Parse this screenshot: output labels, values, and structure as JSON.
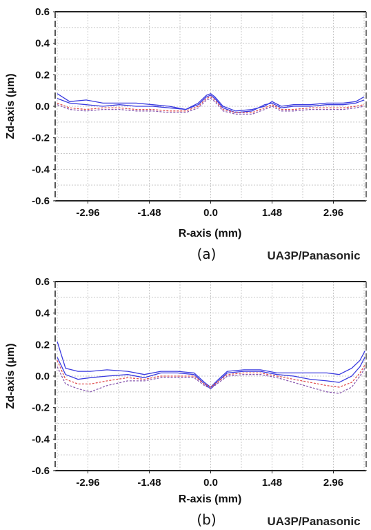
{
  "chart_data": [
    {
      "type": "line",
      "panel_label": "(a)",
      "source_label": "UA3P/Panasonic",
      "xlabel": "R-axis (mm)",
      "ylabel": "Zd-axis (μm)",
      "xlim": [
        -3.75,
        3.75
      ],
      "ylim": [
        -0.6,
        0.6
      ],
      "x_ticks": [
        "-2.96",
        "-1.48",
        "0.0",
        "1.48",
        "2.96"
      ],
      "y_ticks": [
        "0.6",
        "0.4",
        "0.2",
        "0.0",
        "-0.2",
        "-0.4",
        "-0.6"
      ],
      "grid": true,
      "colors": {
        "blue": "#3a3adf",
        "red": "#e05050",
        "purple": "#8a5ab0"
      },
      "series": [
        {
          "color": "blue",
          "style": "solid",
          "x": [
            -3.7,
            -3.4,
            -3.0,
            -2.6,
            -2.2,
            -1.8,
            -1.4,
            -1.0,
            -0.6,
            -0.3,
            -0.1,
            0.0,
            0.1,
            0.3,
            0.6,
            1.0,
            1.3,
            1.48,
            1.7,
            2.0,
            2.4,
            2.8,
            3.2,
            3.5,
            3.7
          ],
          "y": [
            0.08,
            0.03,
            0.04,
            0.02,
            0.02,
            0.02,
            0.01,
            0.0,
            -0.02,
            0.02,
            0.07,
            0.08,
            0.06,
            0.0,
            -0.03,
            -0.02,
            0.0,
            0.03,
            0.0,
            0.01,
            0.01,
            0.02,
            0.02,
            0.03,
            0.06
          ]
        },
        {
          "color": "blue",
          "style": "solid",
          "x": [
            -3.7,
            -3.4,
            -3.0,
            -2.6,
            -2.2,
            -1.8,
            -1.4,
            -1.0,
            -0.6,
            -0.3,
            -0.1,
            0.0,
            0.1,
            0.3,
            0.6,
            1.0,
            1.3,
            1.48,
            1.7,
            2.0,
            2.4,
            2.8,
            3.2,
            3.5,
            3.7
          ],
          "y": [
            0.05,
            0.02,
            0.01,
            0.0,
            0.01,
            0.0,
            0.0,
            -0.01,
            -0.02,
            0.01,
            0.06,
            0.07,
            0.05,
            -0.01,
            -0.04,
            -0.03,
            0.01,
            0.02,
            -0.01,
            0.0,
            0.0,
            0.01,
            0.01,
            0.02,
            0.04
          ]
        },
        {
          "color": "red",
          "style": "dashed",
          "x": [
            -3.7,
            -3.4,
            -3.0,
            -2.6,
            -2.2,
            -1.8,
            -1.4,
            -1.0,
            -0.6,
            -0.3,
            -0.1,
            0.0,
            0.1,
            0.3,
            0.6,
            1.0,
            1.3,
            1.48,
            1.7,
            2.0,
            2.4,
            2.8,
            3.2,
            3.5,
            3.7
          ],
          "y": [
            0.02,
            -0.01,
            -0.02,
            -0.01,
            -0.01,
            -0.02,
            -0.02,
            -0.03,
            -0.03,
            0.0,
            0.05,
            0.06,
            0.04,
            -0.02,
            -0.04,
            -0.04,
            -0.01,
            0.01,
            -0.02,
            -0.02,
            -0.01,
            -0.01,
            -0.01,
            0.0,
            0.01
          ]
        },
        {
          "color": "purple",
          "style": "dashed",
          "x": [
            -3.7,
            -3.4,
            -3.0,
            -2.6,
            -2.2,
            -1.8,
            -1.4,
            -1.0,
            -0.6,
            -0.3,
            -0.1,
            0.0,
            0.1,
            0.3,
            0.6,
            1.0,
            1.3,
            1.48,
            1.7,
            2.0,
            2.4,
            2.8,
            3.2,
            3.5,
            3.7
          ],
          "y": [
            0.01,
            -0.02,
            -0.03,
            -0.02,
            -0.02,
            -0.03,
            -0.03,
            -0.04,
            -0.04,
            -0.01,
            0.04,
            0.05,
            0.03,
            -0.03,
            -0.05,
            -0.05,
            -0.02,
            0.0,
            -0.03,
            -0.03,
            -0.02,
            -0.02,
            -0.02,
            -0.01,
            0.0
          ]
        }
      ]
    },
    {
      "type": "line",
      "panel_label": "(b)",
      "source_label": "UA3P/Panasonic",
      "xlabel": "R-axis (mm)",
      "ylabel": "Zd-axis (μm)",
      "xlim": [
        -3.75,
        3.75
      ],
      "ylim": [
        -0.6,
        0.6
      ],
      "x_ticks": [
        "-2.96",
        "-1.48",
        "0.0",
        "1.48",
        "2.96"
      ],
      "y_ticks": [
        "0.6",
        "0.4",
        "0.2",
        "0.0",
        "-0.2",
        "-0.4",
        "-0.6"
      ],
      "grid": true,
      "colors": {
        "blue": "#3a3adf",
        "red": "#e05050",
        "purple": "#8a5ab0"
      },
      "series": [
        {
          "color": "blue",
          "style": "solid",
          "x": [
            -3.7,
            -3.5,
            -3.2,
            -2.9,
            -2.5,
            -2.0,
            -1.6,
            -1.2,
            -0.8,
            -0.4,
            -0.15,
            0.0,
            0.15,
            0.4,
            0.8,
            1.2,
            1.6,
            2.0,
            2.4,
            2.8,
            3.1,
            3.4,
            3.6,
            3.72
          ],
          "y": [
            0.22,
            0.05,
            0.03,
            0.03,
            0.04,
            0.03,
            0.01,
            0.03,
            0.03,
            0.02,
            -0.04,
            -0.07,
            -0.03,
            0.03,
            0.04,
            0.04,
            0.02,
            0.02,
            0.02,
            0.02,
            0.01,
            0.05,
            0.1,
            0.16
          ]
        },
        {
          "color": "blue",
          "style": "solid",
          "x": [
            -3.7,
            -3.5,
            -3.2,
            -2.9,
            -2.5,
            -2.0,
            -1.6,
            -1.2,
            -0.8,
            -0.4,
            -0.15,
            0.0,
            0.15,
            0.4,
            0.8,
            1.2,
            1.6,
            2.0,
            2.4,
            2.8,
            3.1,
            3.4,
            3.6,
            3.72
          ],
          "y": [
            0.12,
            0.01,
            -0.02,
            -0.01,
            0.0,
            0.01,
            -0.01,
            0.02,
            0.02,
            0.01,
            -0.05,
            -0.08,
            -0.04,
            0.02,
            0.03,
            0.03,
            0.01,
            0.0,
            -0.02,
            -0.03,
            -0.04,
            0.0,
            0.06,
            0.12
          ]
        },
        {
          "color": "red",
          "style": "dashed",
          "x": [
            -3.7,
            -3.5,
            -3.2,
            -2.9,
            -2.5,
            -2.0,
            -1.6,
            -1.2,
            -0.8,
            -0.4,
            -0.15,
            0.0,
            0.15,
            0.4,
            0.8,
            1.2,
            1.6,
            2.0,
            2.4,
            2.8,
            3.1,
            3.4,
            3.6,
            3.72
          ],
          "y": [
            0.1,
            -0.02,
            -0.05,
            -0.05,
            -0.03,
            -0.01,
            -0.02,
            0.0,
            0.0,
            0.0,
            -0.05,
            -0.07,
            -0.04,
            0.01,
            0.02,
            0.02,
            0.0,
            -0.02,
            -0.04,
            -0.06,
            -0.07,
            -0.04,
            0.02,
            0.07
          ]
        },
        {
          "color": "purple",
          "style": "dashed",
          "x": [
            -3.7,
            -3.5,
            -3.2,
            -2.9,
            -2.5,
            -2.0,
            -1.6,
            -1.2,
            -0.8,
            -0.4,
            -0.15,
            0.0,
            0.15,
            0.4,
            0.8,
            1.2,
            1.6,
            2.0,
            2.4,
            2.8,
            3.1,
            3.4,
            3.6,
            3.72
          ],
          "y": [
            0.06,
            -0.05,
            -0.08,
            -0.1,
            -0.06,
            -0.03,
            -0.03,
            -0.01,
            -0.01,
            -0.01,
            -0.06,
            -0.08,
            -0.05,
            0.0,
            0.01,
            0.01,
            -0.01,
            -0.04,
            -0.07,
            -0.1,
            -0.11,
            -0.07,
            0.0,
            0.05
          ]
        }
      ]
    }
  ]
}
